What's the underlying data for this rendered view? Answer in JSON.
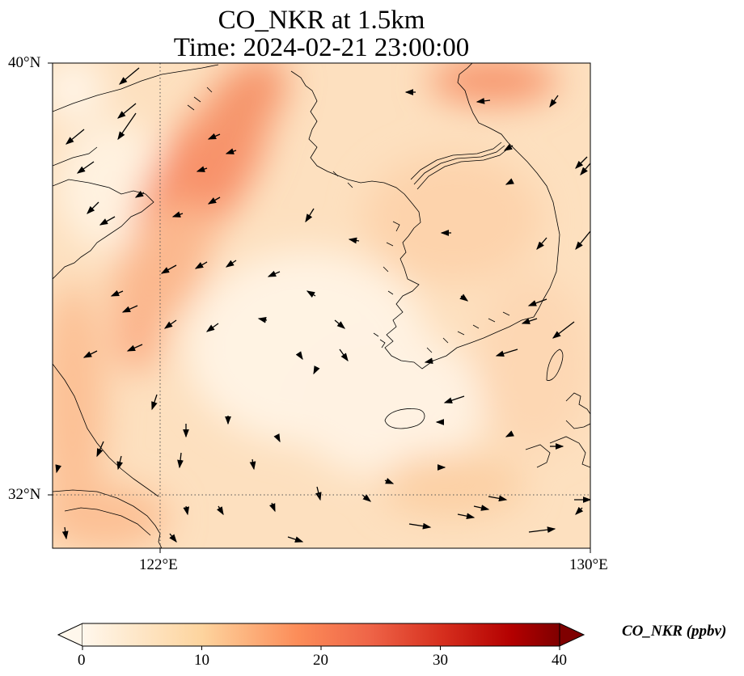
{
  "title": {
    "line1": "CO_NKR at 1.5km",
    "line2": "Time: 2024-02-21 23:00:00"
  },
  "map": {
    "variable": "CO_NKR",
    "level": "1.5km",
    "time": "2024-02-21 23:00:00",
    "lon_range": [
      119.5,
      130
    ],
    "lat_range": [
      30.9,
      40
    ],
    "gridlines": {
      "lon": [
        122
      ],
      "lat": [
        32
      ],
      "style": "dotted"
    },
    "lat_ticks": [
      "40°N",
      "32°N"
    ],
    "lon_ticks": [
      "122°E",
      "130°E"
    ],
    "colormap": "OrRd",
    "colors": {
      "low": "#fff7ec",
      "mid": "#fdbb84",
      "high": "#ef6548",
      "max": "#7f0000"
    }
  },
  "colorbar": {
    "label": "CO_NKR (ppbv)",
    "min": 0,
    "max": 40,
    "extend": "both",
    "ticks": [
      "0",
      "10",
      "20",
      "30",
      "40"
    ]
  }
}
